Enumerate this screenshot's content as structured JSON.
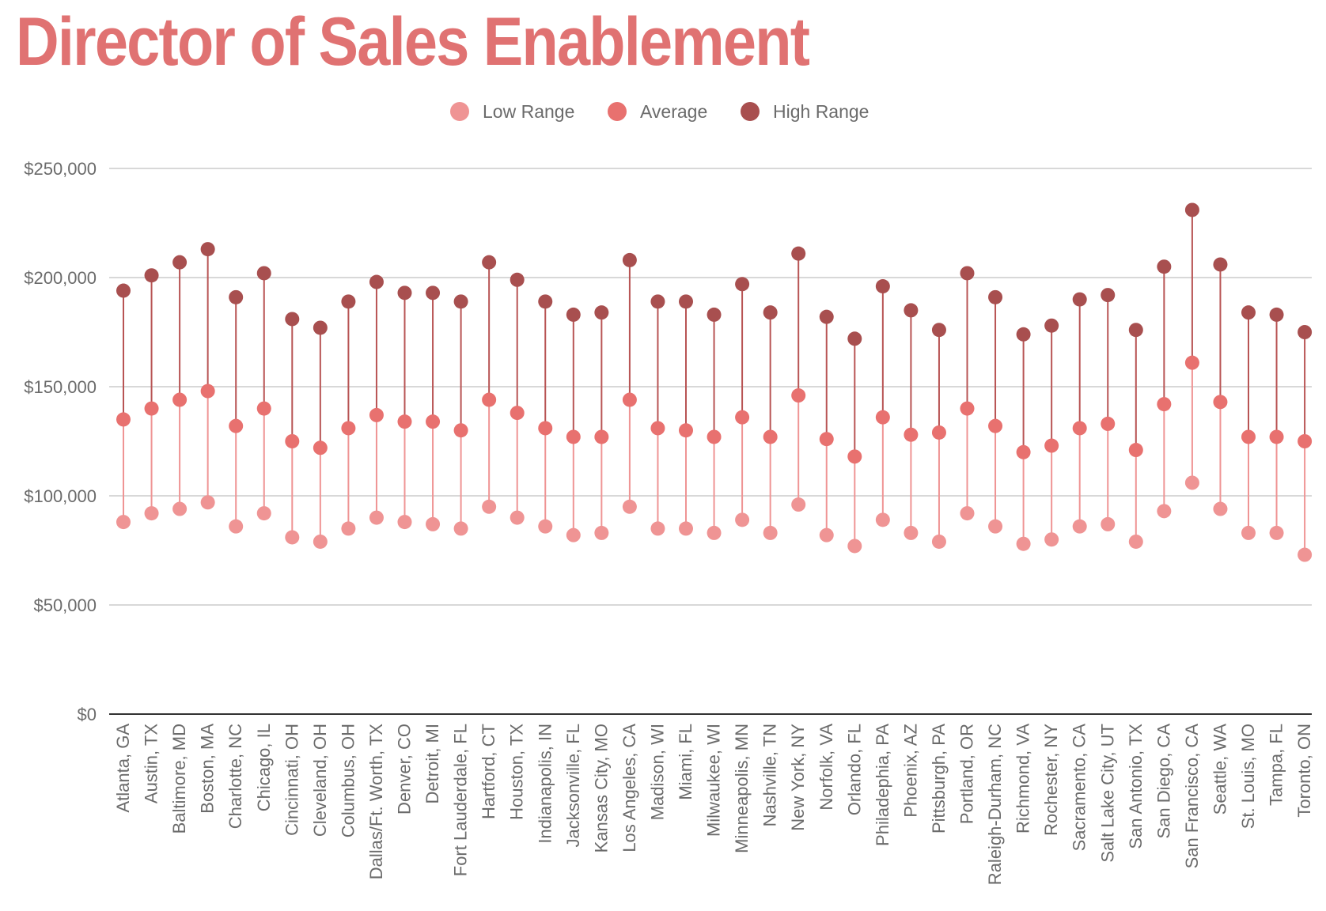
{
  "chart_data": {
    "type": "scatter",
    "title": "Director of Sales Enablement",
    "xlabel": "",
    "ylabel": "",
    "ylim": [
      0,
      250000
    ],
    "y_ticks": [
      "$0",
      "$50,000",
      "$100,000",
      "$150,000",
      "$200,000",
      "$250,000"
    ],
    "y_tick_values": [
      0,
      50000,
      100000,
      150000,
      200000,
      250000
    ],
    "grid": true,
    "legend_position": "top-center",
    "categories": [
      "Atlanta, GA",
      "Austin, TX",
      "Baltimore, MD",
      "Boston, MA",
      "Charlotte, NC",
      "Chicago, IL",
      "Cincinnati, OH",
      "Cleveland, OH",
      "Columbus, OH",
      "Dallas/Ft. Worth, TX",
      "Denver, CO",
      "Detroit, MI",
      "Fort Lauderdale, FL",
      "Hartford, CT",
      "Houston, TX",
      "Indianapolis, IN",
      "Jacksonville, FL",
      "Kansas City, MO",
      "Los Angeles, CA",
      "Madison, WI",
      "Miami, FL",
      "Milwaukee, WI",
      "Minneapolis, MN",
      "Nashville, TN",
      "New York, NY",
      "Norfolk, VA",
      "Orlando, FL",
      "Philadephia, PA",
      "Phoenix, AZ",
      "Pittsburgh, PA",
      "Portland, OR",
      "Raleigh-Durham, NC",
      "Richmond, VA",
      "Rochester, NY",
      "Sacramento, CA",
      "Salt Lake City, UT",
      "San Antonio, TX",
      "San Diego, CA",
      "San Francisco, CA",
      "Seattle, WA",
      "St. Louis, MO",
      "Tampa, FL",
      "Toronto, ON"
    ],
    "series": [
      {
        "name": "Low Range",
        "color": "#ef9494",
        "values": [
          88000,
          92000,
          94000,
          97000,
          86000,
          92000,
          81000,
          79000,
          85000,
          90000,
          88000,
          87000,
          85000,
          95000,
          90000,
          86000,
          82000,
          83000,
          95000,
          85000,
          85000,
          83000,
          89000,
          83000,
          96000,
          82000,
          77000,
          89000,
          83000,
          79000,
          92000,
          86000,
          78000,
          80000,
          86000,
          87000,
          79000,
          93000,
          106000,
          94000,
          83000,
          83000,
          73000
        ]
      },
      {
        "name": "Average",
        "color": "#e8716f",
        "values": [
          135000,
          140000,
          144000,
          148000,
          132000,
          140000,
          125000,
          122000,
          131000,
          137000,
          134000,
          134000,
          130000,
          144000,
          138000,
          131000,
          127000,
          127000,
          144000,
          131000,
          130000,
          127000,
          136000,
          127000,
          146000,
          126000,
          118000,
          136000,
          128000,
          129000,
          140000,
          132000,
          120000,
          123000,
          131000,
          133000,
          121000,
          142000,
          161000,
          143000,
          127000,
          127000,
          125000
        ]
      },
      {
        "name": "High Range",
        "color": "#a84f4f",
        "values": [
          194000,
          201000,
          207000,
          213000,
          191000,
          202000,
          181000,
          177000,
          189000,
          198000,
          193000,
          193000,
          189000,
          207000,
          199000,
          189000,
          183000,
          184000,
          208000,
          189000,
          189000,
          183000,
          197000,
          184000,
          211000,
          182000,
          172000,
          196000,
          185000,
          176000,
          202000,
          191000,
          174000,
          178000,
          190000,
          192000,
          176000,
          205000,
          231000,
          206000,
          184000,
          183000,
          175000
        ]
      }
    ]
  }
}
